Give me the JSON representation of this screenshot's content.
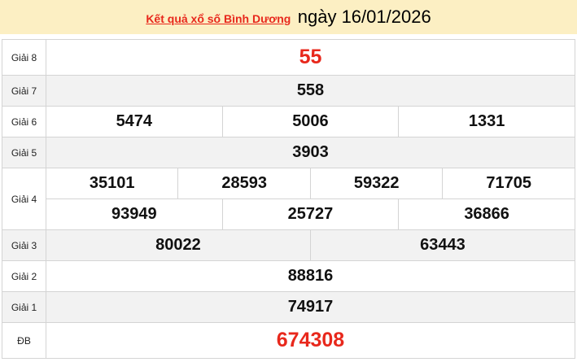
{
  "header": {
    "link": "Kết quả xổ số Bình Dương",
    "date": "ngày 16/01/2026"
  },
  "prizes": {
    "g8": {
      "label": "Giải 8",
      "numbers": [
        "55"
      ]
    },
    "g7": {
      "label": "Giải 7",
      "numbers": [
        "558"
      ]
    },
    "g6": {
      "label": "Giải 6",
      "numbers": [
        "5474",
        "5006",
        "1331"
      ]
    },
    "g5": {
      "label": "Giải 5",
      "numbers": [
        "3903"
      ]
    },
    "g4": {
      "label": "Giải 4",
      "numbers": [
        "35101",
        "28593",
        "59322",
        "71705",
        "93949",
        "25727",
        "36866"
      ]
    },
    "g3": {
      "label": "Giải 3",
      "numbers": [
        "80022",
        "63443"
      ]
    },
    "g2": {
      "label": "Giải 2",
      "numbers": [
        "88816"
      ]
    },
    "g1": {
      "label": "Giải 1",
      "numbers": [
        "74917"
      ]
    },
    "db": {
      "label": "ĐB",
      "numbers": [
        "674308"
      ]
    }
  },
  "colors": {
    "accent": "#e8281c",
    "header_bg": "#fcefc3",
    "alt_row": "#f2f2f2"
  }
}
